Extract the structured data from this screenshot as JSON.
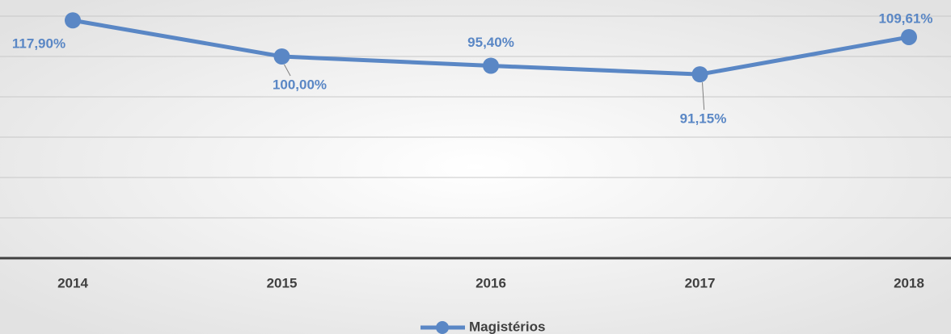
{
  "chart_data": {
    "type": "line",
    "categories": [
      "2014",
      "2015",
      "2016",
      "2017",
      "2018"
    ],
    "series": [
      {
        "name": "Magistérios",
        "color": "#5a87c5",
        "values": [
          117.9,
          100.0,
          95.4,
          91.15,
          109.61
        ],
        "value_labels": [
          "117,90%",
          "100,00%",
          "95,40%",
          "91,15%",
          "109,61%"
        ]
      }
    ],
    "ylim": [
      0,
      120
    ],
    "yticks": [
      0,
      20,
      40,
      60,
      80,
      100,
      120
    ],
    "grid": true,
    "legend": "bottom"
  }
}
